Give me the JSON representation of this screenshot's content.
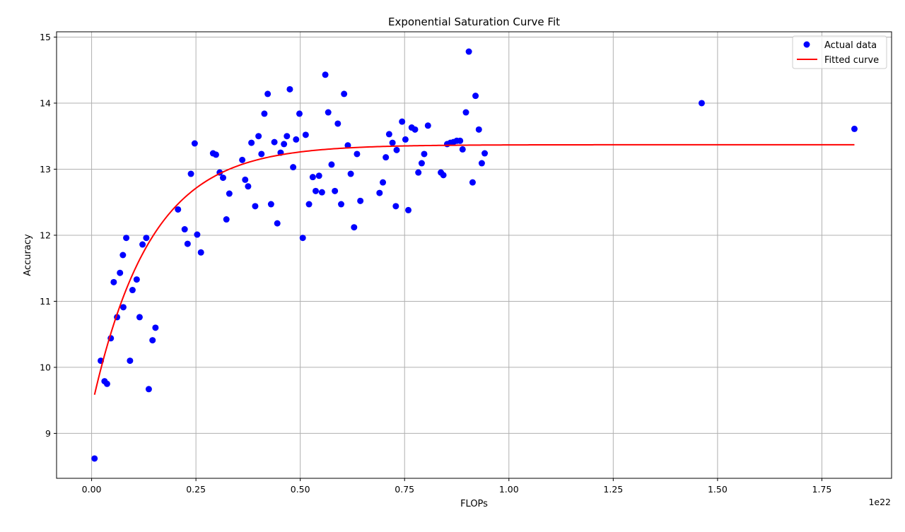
{
  "chart_data": {
    "type": "scatter",
    "title": "Exponential Saturation Curve Fit",
    "xlabel": "FLOPs",
    "ylabel": "Accuracy",
    "x_offset_label": "1e22",
    "xlim": [
      -0.084,
      1.917
    ],
    "ylim": [
      8.32,
      15.08
    ],
    "x_ticks": [
      0.0,
      0.25,
      0.5,
      0.75,
      1.0,
      1.25,
      1.5,
      1.75
    ],
    "x_tick_labels": [
      "0.00",
      "0.25",
      "0.50",
      "0.75",
      "1.00",
      "1.25",
      "1.50",
      "1.75"
    ],
    "y_ticks": [
      9,
      10,
      11,
      12,
      13,
      14,
      15
    ],
    "y_tick_labels": [
      "9",
      "10",
      "11",
      "12",
      "13",
      "14",
      "15"
    ],
    "grid": true,
    "legend_position": "top-right",
    "colors": {
      "points": "#0000ff",
      "curve": "#ff0000",
      "grid": "#b0b0b0"
    },
    "series": [
      {
        "name": "Actual data",
        "kind": "scatter",
        "points": [
          [
            0.007,
            8.62
          ],
          [
            0.022,
            10.1
          ],
          [
            0.031,
            9.79
          ],
          [
            0.037,
            9.75
          ],
          [
            0.046,
            10.44
          ],
          [
            0.053,
            11.29
          ],
          [
            0.061,
            10.76
          ],
          [
            0.068,
            11.43
          ],
          [
            0.075,
            11.7
          ],
          [
            0.076,
            10.91
          ],
          [
            0.083,
            11.96
          ],
          [
            0.092,
            10.1
          ],
          [
            0.098,
            11.17
          ],
          [
            0.108,
            11.33
          ],
          [
            0.115,
            10.76
          ],
          [
            0.122,
            11.86
          ],
          [
            0.131,
            11.96
          ],
          [
            0.137,
            9.67
          ],
          [
            0.146,
            10.41
          ],
          [
            0.153,
            10.6
          ],
          [
            0.207,
            12.39
          ],
          [
            0.223,
            12.09
          ],
          [
            0.23,
            11.87
          ],
          [
            0.238,
            12.93
          ],
          [
            0.247,
            13.39
          ],
          [
            0.253,
            12.01
          ],
          [
            0.262,
            11.74
          ],
          [
            0.291,
            13.24
          ],
          [
            0.298,
            13.22
          ],
          [
            0.307,
            12.95
          ],
          [
            0.315,
            12.87
          ],
          [
            0.323,
            12.24
          ],
          [
            0.33,
            12.63
          ],
          [
            0.361,
            13.14
          ],
          [
            0.368,
            12.84
          ],
          [
            0.375,
            12.74
          ],
          [
            0.383,
            13.4
          ],
          [
            0.392,
            12.44
          ],
          [
            0.4,
            13.5
          ],
          [
            0.407,
            13.23
          ],
          [
            0.414,
            13.84
          ],
          [
            0.422,
            14.14
          ],
          [
            0.43,
            12.47
          ],
          [
            0.438,
            13.41
          ],
          [
            0.445,
            12.18
          ],
          [
            0.453,
            13.25
          ],
          [
            0.461,
            13.38
          ],
          [
            0.468,
            13.5
          ],
          [
            0.475,
            14.21
          ],
          [
            0.483,
            13.03
          ],
          [
            0.49,
            13.45
          ],
          [
            0.498,
            13.84
          ],
          [
            0.506,
            11.96
          ],
          [
            0.513,
            13.52
          ],
          [
            0.521,
            12.47
          ],
          [
            0.53,
            12.88
          ],
          [
            0.537,
            12.67
          ],
          [
            0.545,
            12.9
          ],
          [
            0.552,
            12.65
          ],
          [
            0.56,
            14.43
          ],
          [
            0.567,
            13.86
          ],
          [
            0.575,
            13.07
          ],
          [
            0.583,
            12.67
          ],
          [
            0.59,
            13.69
          ],
          [
            0.598,
            12.47
          ],
          [
            0.605,
            14.14
          ],
          [
            0.614,
            13.36
          ],
          [
            0.621,
            12.93
          ],
          [
            0.629,
            12.12
          ],
          [
            0.636,
            13.23
          ],
          [
            0.644,
            12.52
          ],
          [
            0.69,
            12.64
          ],
          [
            0.698,
            12.8
          ],
          [
            0.705,
            13.18
          ],
          [
            0.713,
            13.53
          ],
          [
            0.721,
            13.4
          ],
          [
            0.729,
            12.44
          ],
          [
            0.731,
            13.29
          ],
          [
            0.744,
            13.72
          ],
          [
            0.752,
            13.45
          ],
          [
            0.759,
            12.38
          ],
          [
            0.767,
            13.63
          ],
          [
            0.775,
            13.6
          ],
          [
            0.783,
            12.95
          ],
          [
            0.791,
            13.09
          ],
          [
            0.797,
            13.23
          ],
          [
            0.806,
            13.66
          ],
          [
            0.837,
            12.95
          ],
          [
            0.843,
            12.91
          ],
          [
            0.852,
            13.38
          ],
          [
            0.86,
            13.4
          ],
          [
            0.867,
            13.41
          ],
          [
            0.875,
            13.43
          ],
          [
            0.883,
            13.43
          ],
          [
            0.889,
            13.3
          ],
          [
            0.897,
            13.86
          ],
          [
            0.904,
            14.78
          ],
          [
            0.913,
            12.8
          ],
          [
            0.92,
            14.11
          ],
          [
            0.928,
            13.6
          ],
          [
            0.935,
            13.09
          ],
          [
            0.942,
            13.24
          ],
          [
            1.462,
            14.0
          ],
          [
            1.828,
            13.61
          ]
        ]
      },
      {
        "name": "Fitted curve",
        "kind": "line",
        "model": "a - b*exp(-c*x)",
        "params": {
          "a": 13.37,
          "b": 3.98,
          "c": 7.2
        },
        "x_range": [
          0.007,
          1.828
        ]
      }
    ]
  }
}
